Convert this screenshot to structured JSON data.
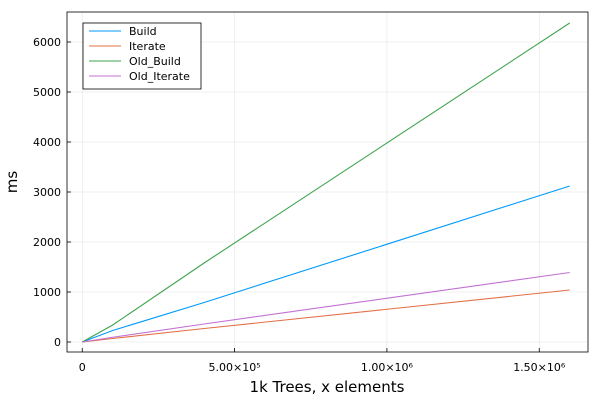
{
  "chart_data": {
    "type": "line",
    "title": "",
    "xlabel": "1k Trees, x elements",
    "ylabel": "ms",
    "xlim": [
      -50000,
      1660000
    ],
    "ylim": [
      -200,
      6600
    ],
    "grid": true,
    "legend_position": "top-left",
    "x_ticks": [
      {
        "value": 0,
        "label": "0"
      },
      {
        "value": 500000,
        "label": "5.00×10⁵"
      },
      {
        "value": 1000000,
        "label": "1.00×10⁶"
      },
      {
        "value": 1500000,
        "label": "1.50×10⁶"
      }
    ],
    "y_ticks": [
      {
        "value": 0,
        "label": "0"
      },
      {
        "value": 1000,
        "label": "1000"
      },
      {
        "value": 2000,
        "label": "2000"
      },
      {
        "value": 3000,
        "label": "3000"
      },
      {
        "value": 4000,
        "label": "4000"
      },
      {
        "value": 5000,
        "label": "5000"
      },
      {
        "value": 6000,
        "label": "6000"
      }
    ],
    "x": [
      0,
      100000,
      400000,
      1600000
    ],
    "series": [
      {
        "name": "Build",
        "color": "#009AFA",
        "values": [
          0,
          230,
          790,
          3120
        ]
      },
      {
        "name": "Iterate",
        "color": "#E36F47",
        "values": [
          0,
          70,
          270,
          1040
        ]
      },
      {
        "name": "Old_Build",
        "color": "#3EA44E",
        "values": [
          0,
          340,
          1580,
          6380
        ]
      },
      {
        "name": "Old_Iterate",
        "color": "#C371D2",
        "values": [
          0,
          95,
          360,
          1390
        ]
      }
    ]
  }
}
